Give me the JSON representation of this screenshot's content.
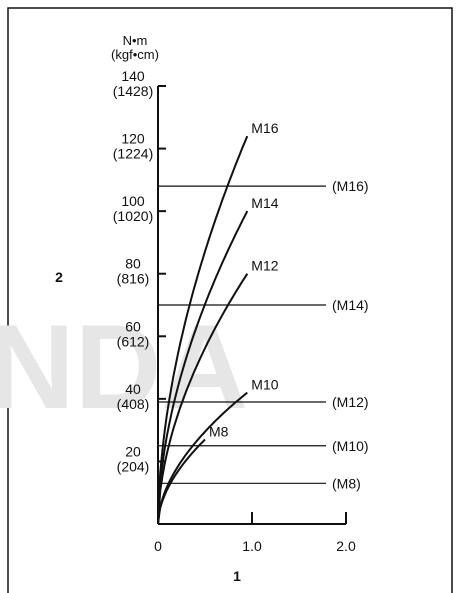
{
  "chart_data": {
    "type": "line",
    "watermark": "NDA",
    "callouts": {
      "y_axis": "2",
      "x_axis": "1"
    },
    "y_unit_label": [
      "N•m",
      "(kgf•cm)"
    ],
    "xlim": [
      0,
      2.0
    ],
    "ylim": [
      0,
      140
    ],
    "x_ticks": [
      {
        "value": 0,
        "label": "0"
      },
      {
        "value": 1.0,
        "label": "1.0"
      },
      {
        "value": 2.0,
        "label": "2.0"
      }
    ],
    "y_ticks": [
      {
        "value": 20,
        "label": "20",
        "sub": "(204)"
      },
      {
        "value": 40,
        "label": "40",
        "sub": "(408)"
      },
      {
        "value": 60,
        "label": "60",
        "sub": "(612)"
      },
      {
        "value": 80,
        "label": "80",
        "sub": "(816)"
      },
      {
        "value": 100,
        "label": "100",
        "sub": "(1020)"
      },
      {
        "value": 120,
        "label": "120",
        "sub": "(1224)"
      },
      {
        "value": 140,
        "label": "140",
        "sub": "(1428)"
      }
    ],
    "series": [
      {
        "name": "M8",
        "x_end": 0.5,
        "y_end": 27
      },
      {
        "name": "M10",
        "x_end": 0.95,
        "y_end": 42
      },
      {
        "name": "M12",
        "x_end": 0.95,
        "y_end": 80
      },
      {
        "name": "M14",
        "x_end": 0.95,
        "y_end": 100
      },
      {
        "name": "M16",
        "x_end": 0.95,
        "y_end": 124
      }
    ],
    "reference_lines": [
      {
        "name": "(M8)",
        "y": 13
      },
      {
        "name": "(M10)",
        "y": 25
      },
      {
        "name": "(M12)",
        "y": 39
      },
      {
        "name": "(M14)",
        "y": 70
      },
      {
        "name": "(M16)",
        "y": 108
      }
    ]
  }
}
